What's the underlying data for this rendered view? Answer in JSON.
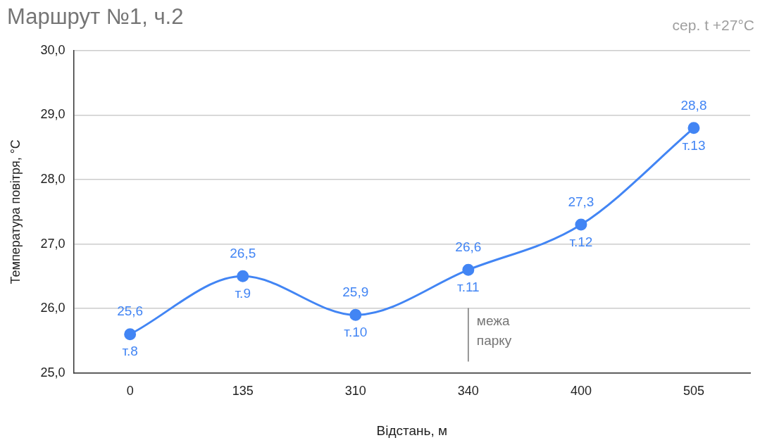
{
  "chart_data": {
    "type": "line",
    "title": "Маршрут №1, ч.2",
    "subtitle": "сер. t +27°C",
    "xlabel": "Відстань, м",
    "ylabel": "Температура повітря, °C",
    "categories": [
      "0",
      "135",
      "310",
      "340",
      "400",
      "505"
    ],
    "series": [
      {
        "color": "#4285f4",
        "values": [
          25.6,
          26.5,
          25.9,
          26.6,
          27.3,
          28.8
        ],
        "value_labels": [
          "25,6",
          "26,5",
          "25,9",
          "26,6",
          "27,3",
          "28,8"
        ]
      }
    ],
    "ylim": [
      25,
      30
    ],
    "yticks": [
      {
        "value": 25,
        "label": "25,0"
      },
      {
        "value": 26,
        "label": "26,0"
      },
      {
        "value": 27,
        "label": "27,0"
      },
      {
        "value": 28,
        "label": "28,0"
      },
      {
        "value": 29,
        "label": "29,0"
      },
      {
        "value": 30,
        "label": "30,0"
      }
    ],
    "grid": "y",
    "legend": false,
    "marker": "circle",
    "line_style": "solid",
    "ref_lines": [
      {
        "axis": "x",
        "value": "340",
        "label": "межа парку",
        "color": "#757575"
      }
    ],
    "annotations": [
      {
        "text": "т.8",
        "x": "0",
        "y": 25.6
      },
      {
        "text": "т.9",
        "x": "135",
        "y": 26.5
      },
      {
        "text": "т.10",
        "x": "310",
        "y": 25.9
      },
      {
        "text": "т.11",
        "x": "340",
        "y": 26.6
      },
      {
        "text": "т.12",
        "x": "400",
        "y": 27.3
      },
      {
        "text": "т.13",
        "x": "505",
        "y": 28.8
      }
    ]
  }
}
